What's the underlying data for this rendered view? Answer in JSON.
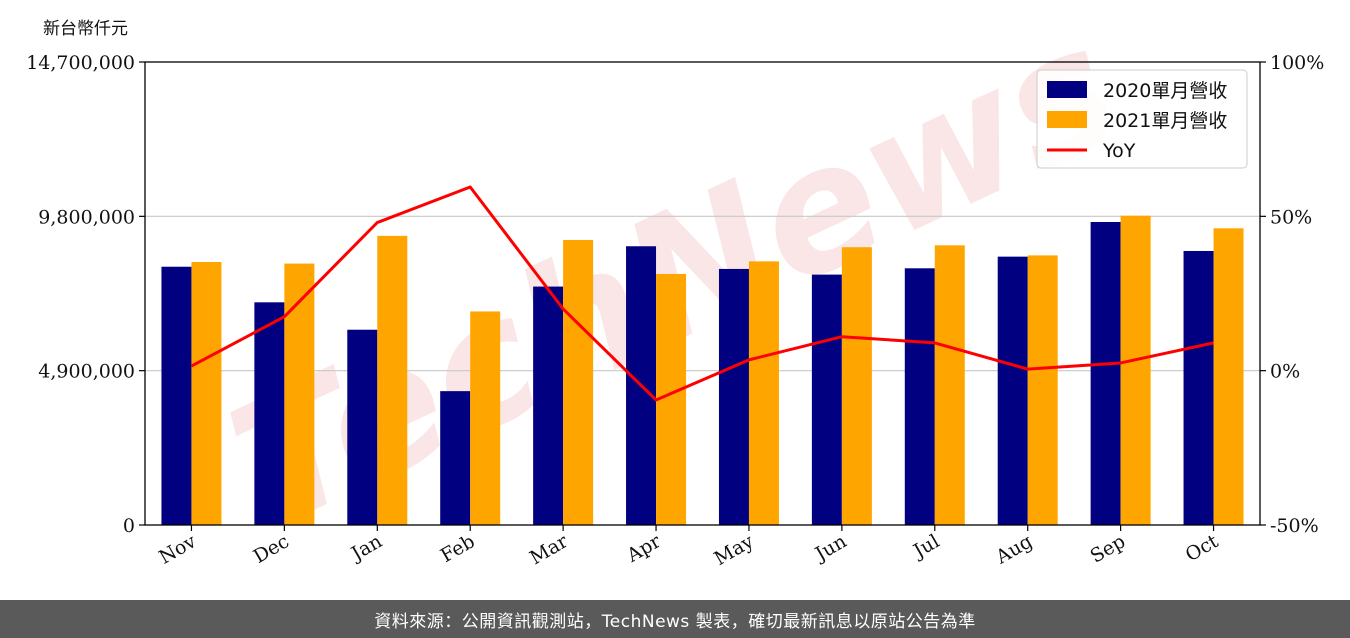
{
  "chart_data": {
    "type": "bar",
    "unit_label": "新台幣仟元",
    "categories": [
      "Nov",
      "Dec",
      "Jan",
      "Feb",
      "Mar",
      "Apr",
      "May",
      "Jun",
      "Jul",
      "Aug",
      "Sep",
      "Oct"
    ],
    "series": [
      {
        "name": "2020單月營收",
        "type": "bar",
        "color": "#000080",
        "values": [
          8200000,
          7070000,
          6200000,
          4250000,
          7570000,
          8850000,
          8130000,
          7950000,
          8150000,
          8520000,
          9620000,
          8700000
        ]
      },
      {
        "name": "2021單月營收",
        "type": "bar",
        "color": "#ffa500",
        "values": [
          8350000,
          8300000,
          9180000,
          6780000,
          9050000,
          7970000,
          8370000,
          8820000,
          8880000,
          8560000,
          9820000,
          9420000
        ]
      },
      {
        "name": "YoY",
        "type": "line",
        "color": "#ff0000",
        "axis": "right",
        "values": [
          1.5,
          17.5,
          48,
          59.5,
          20,
          -9.5,
          3.5,
          11,
          9,
          0.5,
          2.5,
          9
        ]
      }
    ],
    "left_axis": {
      "ylim": [
        0,
        14700000
      ],
      "ticks": [
        0,
        4900000,
        9800000,
        14700000
      ],
      "tick_labels": [
        "0",
        "4,900,000",
        "9,800,000",
        "14,700,000"
      ]
    },
    "right_axis": {
      "ylim": [
        -50,
        100
      ],
      "ticks": [
        -50,
        0,
        50,
        100
      ],
      "tick_labels": [
        "-50%",
        "0%",
        "50%",
        "100%"
      ]
    },
    "grid": "horizontal",
    "legend_position": "top-right",
    "watermark": "TechNews"
  },
  "footer": {
    "text": "資料來源：公開資訊觀測站，TechNews 製表，確切最新訊息以原站公告為準"
  }
}
